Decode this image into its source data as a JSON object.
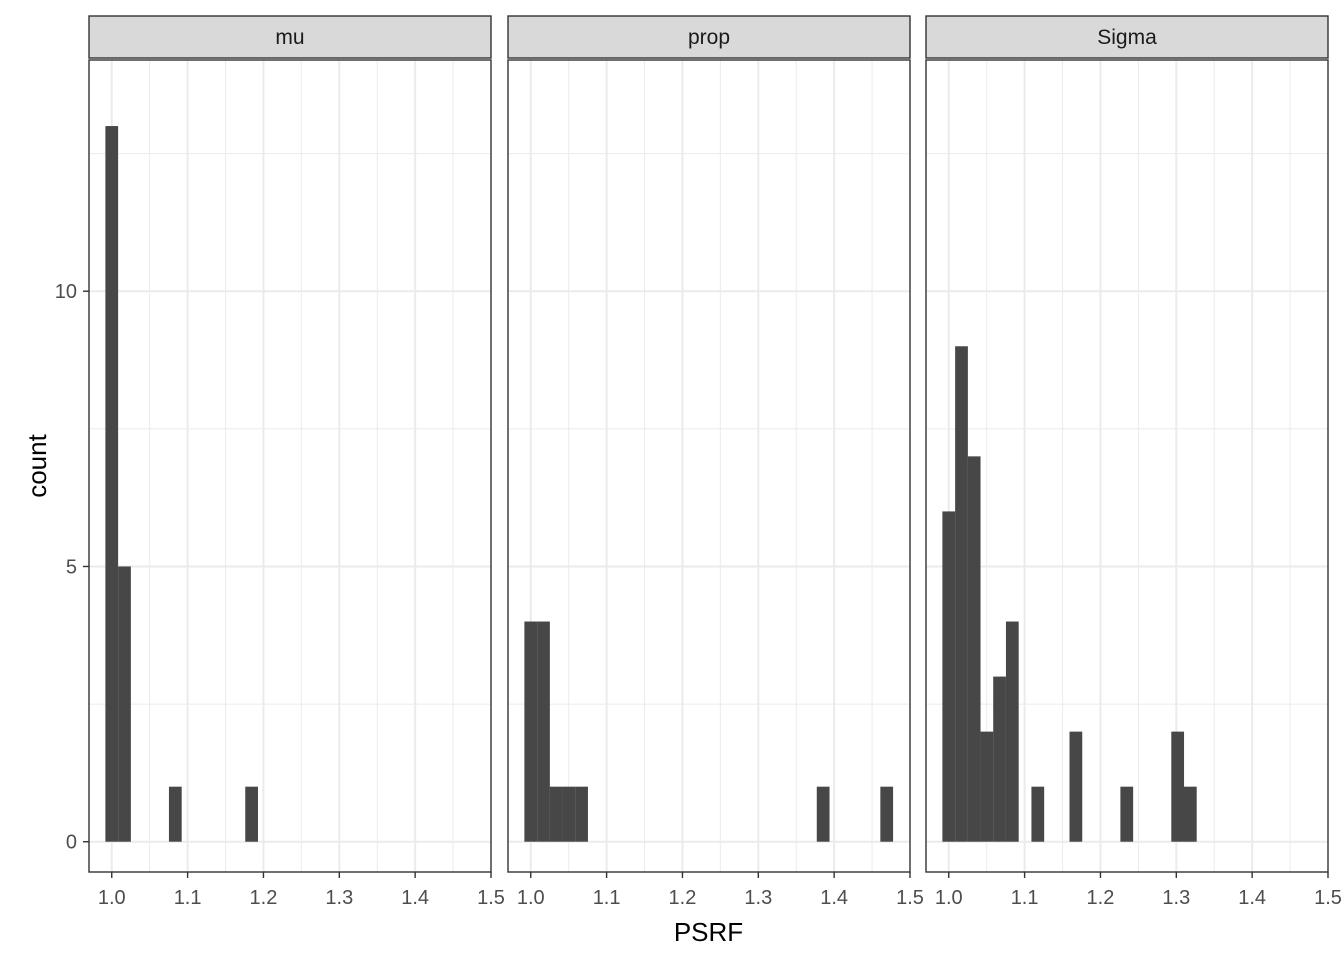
{
  "chart_data": {
    "type": "bar",
    "subtype": "faceted-histogram",
    "xlabel": "PSRF",
    "ylabel": "count",
    "xlim": [
      0.97,
      1.5
    ],
    "ylim": [
      -0.55,
      14.2
    ],
    "x_ticks": [
      1.0,
      1.1,
      1.2,
      1.3,
      1.4,
      1.5
    ],
    "x_tick_labels": [
      "1.0",
      "1.1",
      "1.2",
      "1.3",
      "1.4",
      "1.5"
    ],
    "y_ticks": [
      0,
      5,
      10
    ],
    "y_tick_labels": [
      "0",
      "5",
      "10"
    ],
    "bin_width": 0.0168,
    "grid": true,
    "theme": "bw",
    "bar_color": "#474747",
    "facets": [
      {
        "name": "mu",
        "bins": [
          {
            "x": 1.0,
            "count": 13
          },
          {
            "x": 1.0168,
            "count": 5
          },
          {
            "x": 1.0838,
            "count": 1
          },
          {
            "x": 1.1844,
            "count": 1
          }
        ]
      },
      {
        "name": "prop",
        "bins": [
          {
            "x": 1.0,
            "count": 4
          },
          {
            "x": 1.0168,
            "count": 4
          },
          {
            "x": 1.0335,
            "count": 1
          },
          {
            "x": 1.0503,
            "count": 1
          },
          {
            "x": 1.067,
            "count": 1
          },
          {
            "x": 1.3855,
            "count": 1
          },
          {
            "x": 1.4693,
            "count": 1
          }
        ]
      },
      {
        "name": "Sigma",
        "bins": [
          {
            "x": 1.0,
            "count": 6
          },
          {
            "x": 1.0168,
            "count": 9
          },
          {
            "x": 1.0335,
            "count": 7
          },
          {
            "x": 1.0503,
            "count": 2
          },
          {
            "x": 1.067,
            "count": 3
          },
          {
            "x": 1.0838,
            "count": 4
          },
          {
            "x": 1.1174,
            "count": 1
          },
          {
            "x": 1.1676,
            "count": 2
          },
          {
            "x": 1.2347,
            "count": 1
          },
          {
            "x": 1.3018,
            "count": 2
          },
          {
            "x": 1.3185,
            "count": 1
          }
        ]
      }
    ]
  }
}
